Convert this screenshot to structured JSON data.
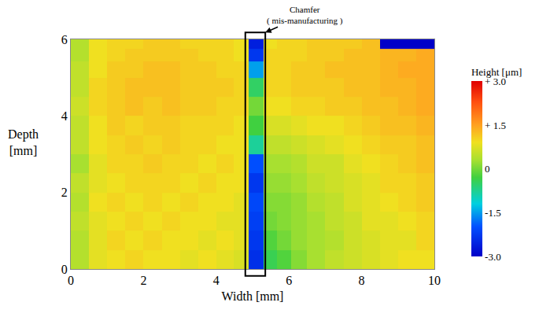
{
  "chart_data": {
    "type": "heatmap",
    "x_label": "Width [mm]",
    "y_label": "Depth\n[mm]",
    "xlim": [
      0,
      10
    ],
    "xticks": [
      0,
      2,
      4,
      6,
      8,
      10
    ],
    "ylim": [
      0,
      6
    ],
    "yticks": [
      0,
      2,
      4,
      6
    ],
    "grid": false,
    "x": [
      0.25,
      0.75,
      1.25,
      1.75,
      2.25,
      2.75,
      3.25,
      3.75,
      4.25,
      4.7,
      5.1,
      5.5,
      5.85,
      6.25,
      6.75,
      7.25,
      7.75,
      8.25,
      8.75,
      9.25,
      9.75
    ],
    "y": [
      0.25,
      0.75,
      1.25,
      1.75,
      2.25,
      2.75,
      3.25,
      3.75,
      4.25,
      4.75,
      5.25,
      5.6,
      5.92
    ],
    "z": [
      [
        0.4,
        0.8,
        0.9,
        1.0,
        0.9,
        0.9,
        0.8,
        0.9,
        0.8,
        0.7,
        -2.4,
        -0.4,
        -0.2,
        0.1,
        0.3,
        0.5,
        0.6,
        0.7,
        0.8,
        0.9,
        0.9
      ],
      [
        0.4,
        0.8,
        1.0,
        0.9,
        1.0,
        0.9,
        0.9,
        0.8,
        0.9,
        0.8,
        -2.3,
        -0.2,
        0.0,
        0.2,
        0.3,
        0.4,
        0.6,
        0.7,
        0.8,
        0.8,
        1.0
      ],
      [
        0.5,
        0.8,
        0.9,
        1.0,
        0.9,
        1.0,
        0.9,
        0.9,
        0.8,
        0.8,
        -2.2,
        0.0,
        0.1,
        0.2,
        0.3,
        0.5,
        0.6,
        0.8,
        0.8,
        0.9,
        1.0
      ],
      [
        0.4,
        0.9,
        1.0,
        0.9,
        1.0,
        0.9,
        1.0,
        0.9,
        0.9,
        0.8,
        -2.1,
        0.1,
        0.1,
        0.2,
        0.4,
        0.5,
        0.7,
        0.8,
        0.9,
        1.0,
        1.1
      ],
      [
        0.5,
        0.8,
        0.9,
        1.0,
        1.0,
        1.0,
        0.9,
        1.0,
        0.9,
        0.9,
        -2.3,
        0.2,
        0.2,
        0.3,
        0.5,
        0.6,
        0.7,
        0.8,
        1.0,
        1.0,
        1.1
      ],
      [
        0.3,
        0.8,
        1.0,
        1.0,
        1.1,
        1.0,
        1.0,
        0.9,
        1.0,
        0.9,
        -2.0,
        0.3,
        0.3,
        0.4,
        0.6,
        0.6,
        0.8,
        0.9,
        1.0,
        1.1,
        1.2
      ],
      [
        0.5,
        0.9,
        1.0,
        1.1,
        1.0,
        1.1,
        1.0,
        1.0,
        0.9,
        0.9,
        -0.8,
        0.5,
        0.5,
        0.6,
        0.7,
        0.8,
        0.9,
        1.0,
        1.1,
        1.1,
        1.2
      ],
      [
        0.5,
        0.9,
        1.1,
        1.0,
        1.1,
        1.1,
        1.0,
        1.0,
        1.0,
        0.9,
        -0.3,
        0.7,
        0.7,
        0.8,
        0.9,
        0.9,
        1.0,
        1.1,
        1.2,
        1.2,
        1.3
      ],
      [
        0.6,
        1.0,
        1.1,
        1.2,
        1.1,
        1.2,
        1.1,
        1.1,
        1.0,
        1.0,
        0.0,
        0.9,
        0.9,
        1.0,
        1.0,
        1.1,
        1.1,
        1.2,
        1.2,
        1.3,
        1.4
      ],
      [
        0.5,
        1.0,
        1.1,
        1.2,
        1.2,
        1.2,
        1.1,
        1.1,
        1.1,
        1.0,
        -0.5,
        1.0,
        1.0,
        1.1,
        1.1,
        1.1,
        1.2,
        1.2,
        1.3,
        1.3,
        1.4
      ],
      [
        0.5,
        0.9,
        1.1,
        1.1,
        1.2,
        1.2,
        1.1,
        1.1,
        1.0,
        1.0,
        -1.5,
        1.0,
        1.0,
        1.1,
        1.1,
        1.2,
        1.2,
        1.2,
        1.3,
        1.4,
        1.4
      ],
      [
        0.4,
        0.9,
        1.0,
        1.1,
        1.1,
        1.1,
        1.1,
        1.0,
        1.0,
        0.9,
        -2.3,
        1.0,
        1.0,
        1.0,
        1.1,
        1.1,
        1.2,
        1.2,
        1.3,
        1.3,
        1.4
      ],
      [
        0.4,
        0.9,
        1.0,
        1.0,
        1.1,
        1.1,
        1.0,
        1.0,
        1.0,
        0.9,
        -2.6,
        0.9,
        1.0,
        1.0,
        1.1,
        1.1,
        1.1,
        1.2,
        -3.0,
        -3.0,
        -3.0
      ]
    ],
    "colorbar": {
      "title": "Height [μm]",
      "range": [
        -3,
        3
      ],
      "ticks": [
        {
          "value": 3,
          "label": "+ 3.0"
        },
        {
          "value": 1.5,
          "label": "+ 1.5"
        },
        0,
        {
          "value": -1.5,
          "label": "-1.5"
        },
        {
          "value": -3,
          "label": "-3.0"
        }
      ]
    },
    "annotations": [
      {
        "text": "Chamfer\n( mis-manufacturing )",
        "region_x": [
          4.8,
          5.35
        ]
      }
    ]
  }
}
